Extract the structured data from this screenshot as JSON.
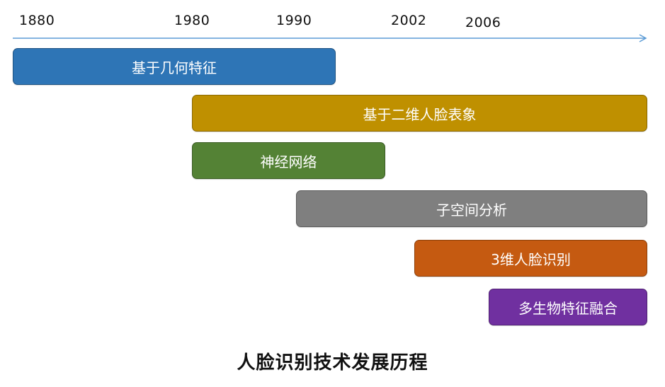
{
  "timeline": {
    "years": [
      "1880",
      "1980",
      "1990",
      "2002",
      "2006"
    ],
    "axis_color": "#5b9bd5"
  },
  "bars": [
    {
      "label": "基于几何特征",
      "color": "#2e75b6"
    },
    {
      "label": "基于二维人脸表象",
      "color": "#bf9000"
    },
    {
      "label": "神经网络",
      "color": "#548235"
    },
    {
      "label": "子空间分析",
      "color": "#7f7f7f"
    },
    {
      "label": "3维人脸识别",
      "color": "#c55a11"
    },
    {
      "label": "多生物特征融合",
      "color": "#7030a0"
    }
  ],
  "caption": "人脸识别技术发展历程"
}
